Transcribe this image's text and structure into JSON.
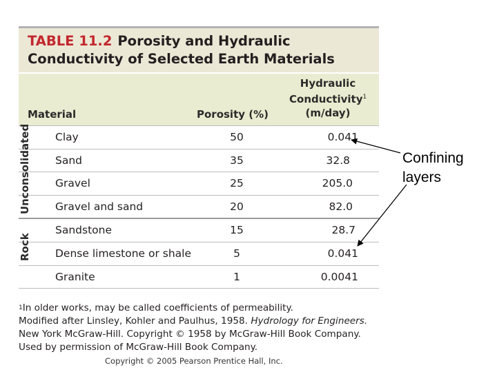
{
  "table": {
    "number": "TABLE 11.2",
    "title_line1": "Porosity and Hydraulic",
    "title_line2": "Conductivity of Selected Earth Materials",
    "columns": {
      "material": "Material",
      "porosity": "Porosity (%)",
      "conductivity_l1": "Hydraulic",
      "conductivity_l2": "Conductivity",
      "conductivity_sup": "1",
      "conductivity_l3": "(m/day)"
    },
    "groups": [
      {
        "label": "Unconsolidated",
        "rows": [
          {
            "material": "Clay",
            "porosity": "50",
            "conductivity": "0.041"
          },
          {
            "material": "Sand",
            "porosity": "35",
            "conductivity": "32.8"
          },
          {
            "material": "Gravel",
            "porosity": "25",
            "conductivity": "205.0"
          },
          {
            "material": "Gravel and sand",
            "porosity": "20",
            "conductivity": "82.0"
          }
        ]
      },
      {
        "label": "Rock",
        "rows": [
          {
            "material": "Sandstone",
            "porosity": "15",
            "conductivity": "28.7"
          },
          {
            "material": "Dense limestone or shale",
            "porosity": "5",
            "conductivity": "0.041"
          },
          {
            "material": "Granite",
            "porosity": "1",
            "conductivity": "0.0041"
          }
        ]
      }
    ]
  },
  "footnotes": {
    "marker": "1",
    "note": "In older works, may be called coefficients of permeability.",
    "source_l1_a": "Modified after Linsley, Kohler and Paulhus, 1958. ",
    "source_l1_b": "Hydrology for Engineers.",
    "source_l2": "New York McGraw-Hill. Copyright © 1958 by McGraw-Hill Book Company.",
    "source_l3": "Used by permission of McGraw-Hill Book Company."
  },
  "copyright": "Copyright © 2005 Pearson Prentice Hall, Inc.",
  "annotation": {
    "line1": "Confining",
    "line2": "layers"
  },
  "colors": {
    "title_number": "#c2272d",
    "title_band": "#ece8d6",
    "header_band": "#e9ecd0",
    "row_rule": "#b9bcbd"
  }
}
